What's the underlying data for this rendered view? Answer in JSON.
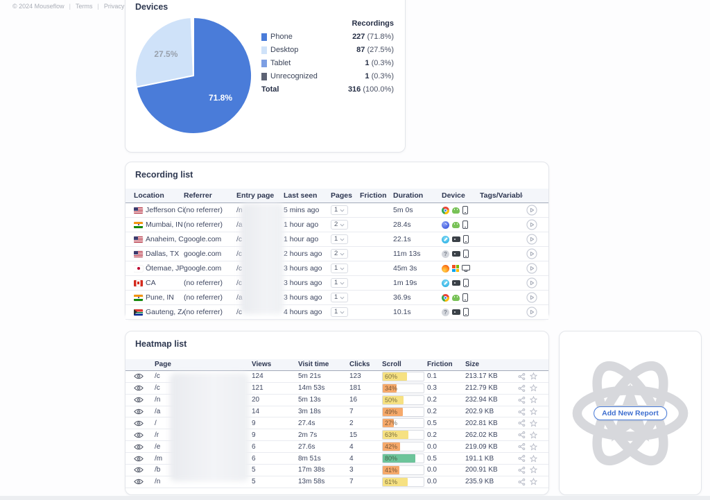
{
  "footer": {
    "copyright": "© 2024 Mouseflow",
    "links": [
      {
        "label": "Terms"
      },
      {
        "label": "Privacy"
      }
    ]
  },
  "devices": {
    "title": "Devices",
    "legend_header": "Recordings"
  },
  "chart_data": {
    "type": "pie",
    "title": "Devices",
    "legend_position": "right",
    "series": [
      {
        "label": "Phone",
        "value": 227,
        "percent": "71.8%",
        "color": "#4a7cd9",
        "slice_label": "71.8%",
        "slice_label_color": "#ffffff"
      },
      {
        "label": "Desktop",
        "value": 87,
        "percent": "27.5%",
        "color": "#cfe2f9",
        "slice_label": "27.5%",
        "slice_label_color": "#98a0ac"
      },
      {
        "label": "Tablet",
        "value": 1,
        "percent": "0.3%",
        "color": "#7d9fe3",
        "slice_label": "",
        "slice_label_color": ""
      },
      {
        "label": "Unrecognized",
        "value": 1,
        "percent": "0.3%",
        "color": "#5d6374",
        "slice_label": "",
        "slice_label_color": ""
      }
    ],
    "total": {
      "label": "Total",
      "value": 316,
      "percent": "100.0%"
    }
  },
  "recording_list": {
    "title": "Recording list",
    "columns": [
      "Location",
      "Referrer",
      "Entry page",
      "Last seen",
      "Pages",
      "Friction",
      "Duration",
      "Device",
      "Tags/Variables"
    ],
    "rows": [
      {
        "flag": "us",
        "location": "Jefferson Ci...",
        "referrer": "(no referrer)",
        "entry_page": "/n",
        "last_seen": "5 mins ago",
        "pages": "1",
        "friction": "",
        "duration": "5m 0s",
        "devices": [
          "chrome",
          "android",
          "phone"
        ]
      },
      {
        "flag": "in",
        "location": "Mumbai, IN",
        "referrer": "(no referrer)",
        "entry_page": "/a",
        "last_seen": "1 hour ago",
        "pages": "2",
        "friction": "",
        "duration": "28.4s",
        "devices": [
          "samsung-internet",
          "android",
          "phone"
        ]
      },
      {
        "flag": "us",
        "location": "Anaheim, CA",
        "referrer": "google.com",
        "entry_page": "/c",
        "last_seen": "1 hour ago",
        "pages": "1",
        "friction": "",
        "duration": "22.1s",
        "devices": [
          "safari",
          "ios",
          "phone"
        ]
      },
      {
        "flag": "us",
        "location": "Dallas, TX",
        "referrer": "google.com",
        "entry_page": "/c",
        "last_seen": "2 hours ago",
        "pages": "2",
        "friction": "",
        "duration": "11m 13s",
        "devices": [
          "unknown-browser",
          "ios",
          "phone"
        ]
      },
      {
        "flag": "jp",
        "location": "Ōtemae, JP",
        "referrer": "google.com",
        "entry_page": "/c",
        "last_seen": "3 hours ago",
        "pages": "1",
        "friction": "",
        "duration": "45m 3s",
        "devices": [
          "firefox",
          "windows",
          "desktop"
        ]
      },
      {
        "flag": "ca",
        "location": "CA",
        "referrer": "(no referrer)",
        "entry_page": "/c",
        "last_seen": "3 hours ago",
        "pages": "1",
        "friction": "",
        "duration": "1m 19s",
        "devices": [
          "safari",
          "ios",
          "phone"
        ]
      },
      {
        "flag": "in",
        "location": "Pune, IN",
        "referrer": "(no referrer)",
        "entry_page": "/a",
        "last_seen": "3 hours ago",
        "pages": "1",
        "friction": "",
        "duration": "36.9s",
        "devices": [
          "chrome",
          "android",
          "phone"
        ]
      },
      {
        "flag": "za",
        "location": "Gauteng, ZA",
        "referrer": "(no referrer)",
        "entry_page": "/c",
        "last_seen": "4 hours ago",
        "pages": "1",
        "friction": "",
        "duration": "10.1s",
        "devices": [
          "unknown-browser",
          "ios",
          "phone"
        ]
      }
    ]
  },
  "heatmap_list": {
    "title": "Heatmap list",
    "columns": [
      "Page",
      "Views",
      "Visit time",
      "Clicks",
      "Scroll",
      "Friction",
      "Size"
    ],
    "scroll_colors": {
      "yellow": "#f6e182",
      "orange": "#f6a96b",
      "green": "#6cc49a"
    },
    "rows": [
      {
        "page": "/c",
        "views": "124",
        "visit_time": "5m 21s",
        "clicks": "123",
        "scroll": 60,
        "scroll_level": "yellow",
        "friction": "0.1",
        "size": "213.17 KB"
      },
      {
        "page": "/c",
        "views": "121",
        "visit_time": "14m 53s",
        "clicks": "181",
        "scroll": 34,
        "scroll_level": "orange",
        "friction": "0.3",
        "size": "212.79 KB"
      },
      {
        "page": "/n",
        "views": "20",
        "visit_time": "5m 13s",
        "clicks": "16",
        "scroll": 50,
        "scroll_level": "yellow",
        "friction": "0.2",
        "size": "232.94 KB"
      },
      {
        "page": "/a",
        "views": "14",
        "visit_time": "3m 18s",
        "clicks": "7",
        "scroll": 49,
        "scroll_level": "orange",
        "friction": "0.2",
        "size": "202.9 KB"
      },
      {
        "page": "/",
        "views": "9",
        "visit_time": "27.4s",
        "clicks": "2",
        "scroll": 27,
        "scroll_level": "orange",
        "friction": "0.5",
        "size": "202.81 KB"
      },
      {
        "page": "/r",
        "views": "9",
        "visit_time": "2m 7s",
        "clicks": "15",
        "scroll": 63,
        "scroll_level": "yellow",
        "friction": "0.2",
        "size": "262.02 KB"
      },
      {
        "page": "/e",
        "views": "6",
        "visit_time": "27.6s",
        "clicks": "4",
        "scroll": 42,
        "scroll_level": "orange",
        "friction": "0.0",
        "size": "219.09 KB"
      },
      {
        "page": "/m",
        "views": "6",
        "visit_time": "8m 51s",
        "clicks": "4",
        "scroll": 80,
        "scroll_level": "green",
        "friction": "0.5",
        "size": "191.1 KB"
      },
      {
        "page": "/b",
        "views": "5",
        "visit_time": "17m 38s",
        "clicks": "3",
        "scroll": 41,
        "scroll_level": "orange",
        "friction": "0.0",
        "size": "200.91 KB"
      },
      {
        "page": "/n",
        "views": "5",
        "visit_time": "13m 58s",
        "clicks": "7",
        "scroll": 61,
        "scroll_level": "yellow",
        "friction": "0.0",
        "size": "235.9 KB"
      }
    ]
  },
  "add_report": {
    "button_label": "Add New Report"
  }
}
